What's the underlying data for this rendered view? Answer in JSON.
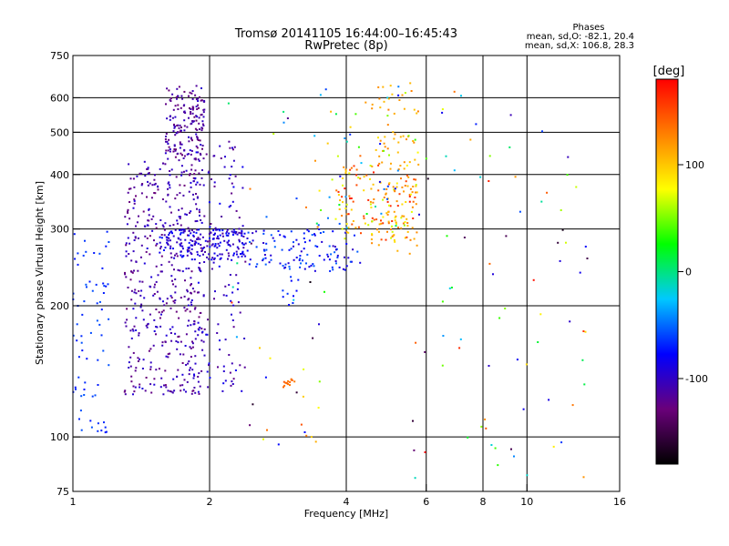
{
  "chart_data": {
    "type": "scatter",
    "title": "Tromsø 20141105 16:44:00–16:45:43",
    "subtitle": "RwPretec (8p)",
    "xlabel": "Frequency [MHz]",
    "ylabel": "Stationary phase Virtual Height [km]",
    "x_scale": "log",
    "y_scale": "log",
    "xlim": [
      1,
      16
    ],
    "ylim": [
      75,
      750
    ],
    "x_ticks": [
      1,
      2,
      4,
      6,
      8,
      10,
      16
    ],
    "y_ticks": [
      75,
      100,
      200,
      300,
      400,
      500,
      600,
      750
    ],
    "x_grid": [
      2,
      4,
      6,
      8,
      10
    ],
    "y_grid": [
      100,
      200,
      300,
      400,
      500,
      600
    ],
    "stats": {
      "heading": "Phases",
      "line_o": "mean, sd,O: -82.1, 20.4",
      "line_x": "mean, sd,X: 106.8, 28.3"
    },
    "colorbar": {
      "label": "[deg]",
      "min": -180,
      "max": 180,
      "ticks": [
        100,
        0,
        -100
      ],
      "colormap": [
        "#000000",
        "#6a007a",
        "#0000ff",
        "#00c8ff",
        "#00ff00",
        "#ffff00",
        "#ff8000",
        "#ff0000"
      ]
    },
    "regions": [
      {
        "x": [
          1.6,
          1.95
        ],
        "y": [
          430,
          640
        ],
        "phase": [
          -135,
          -95
        ],
        "n": 170
      },
      {
        "x": [
          1.3,
          1.95
        ],
        "y": [
          125,
          430
        ],
        "phase": [
          -130,
          -90
        ],
        "n": 460
      },
      {
        "x": [
          1.8,
          2.4
        ],
        "y": [
          125,
          470
        ],
        "phase": [
          -125,
          -80
        ],
        "n": 150
      },
      {
        "x": [
          1.55,
          2.4
        ],
        "y": [
          255,
          300
        ],
        "phase": [
          -110,
          -70
        ],
        "n": 170
      },
      {
        "x": [
          2.4,
          4.3
        ],
        "y": [
          240,
          300
        ],
        "phase": [
          -100,
          -50
        ],
        "n": 120
      },
      {
        "x": [
          3.8,
          5.7
        ],
        "y": [
          280,
          420
        ],
        "phase": [
          60,
          170
        ],
        "n": 120
      },
      {
        "x": [
          4.5,
          5.8
        ],
        "y": [
          260,
          650
        ],
        "phase": [
          100,
          130
        ],
        "n": 90
      },
      {
        "x": [
          3.4,
          5.8
        ],
        "y": [
          300,
          640
        ],
        "phase": [
          -90,
          140
        ],
        "n": 70
      },
      {
        "x": [
          1.0,
          1.2
        ],
        "y": [
          100,
          300
        ],
        "phase": [
          -75,
          -55
        ],
        "n": 70
      },
      {
        "x": [
          2.9,
          3.1
        ],
        "y": [
          130,
          136
        ],
        "phase": [
          130,
          150
        ],
        "n": 14
      },
      {
        "x": [
          2.9,
          3.2
        ],
        "y": [
          200,
          235
        ],
        "phase": [
          -80,
          -60
        ],
        "n": 10
      },
      {
        "x": [
          5.5,
          14
        ],
        "y": [
          80,
          640
        ],
        "phase": [
          -180,
          180
        ],
        "n": 80
      },
      {
        "x": [
          2.2,
          3.6
        ],
        "y": [
          90,
          640
        ],
        "phase": [
          -180,
          180
        ],
        "n": 40
      }
    ]
  }
}
